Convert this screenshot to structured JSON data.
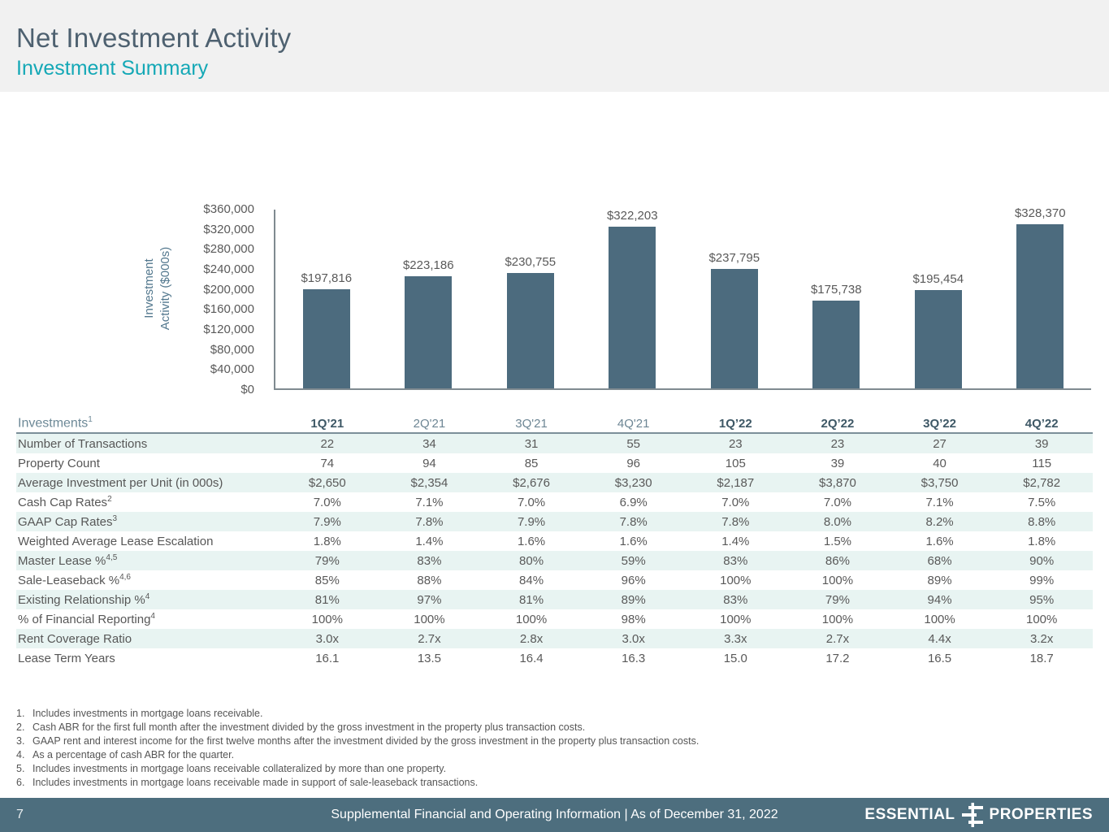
{
  "header": {
    "title": "Net Investment Activity",
    "subtitle": "Investment Summary"
  },
  "chart_data": {
    "type": "bar",
    "categories": [
      "1Q’21",
      "2Q'21",
      "3Q'21",
      "4Q'21",
      "1Q’22",
      "2Q’22",
      "3Q’22",
      "4Q’22"
    ],
    "values": [
      197816,
      223186,
      230755,
      322203,
      237795,
      175738,
      195454,
      328370
    ],
    "labels": [
      "$197,816",
      "$223,186",
      "$230,755",
      "$322,203",
      "$237,795",
      "$175,738",
      "$195,454",
      "$328,370"
    ],
    "title": "",
    "xlabel": "",
    "ylabel": "Investment\nActivity ($000s)",
    "ylim": [
      0,
      360000
    ],
    "ytick_step": 40000,
    "yticks": [
      "$360,000",
      "$320,000",
      "$280,000",
      "$240,000",
      "$200,000",
      "$160,000",
      "$120,000",
      "$80,000",
      "$40,000",
      "$0"
    ],
    "grid": false,
    "legend": null,
    "bar_color": "#4c6b7e"
  },
  "table": {
    "corner_label": "Investments",
    "corner_sup": "1",
    "columns": [
      {
        "label": "1Q’21",
        "bold": true
      },
      {
        "label": "2Q'21",
        "bold": false
      },
      {
        "label": "3Q'21",
        "bold": false
      },
      {
        "label": "4Q'21",
        "bold": false
      },
      {
        "label": "1Q’22",
        "bold": true
      },
      {
        "label": "2Q’22",
        "bold": true
      },
      {
        "label": "3Q’22",
        "bold": true
      },
      {
        "label": "4Q’22",
        "bold": true
      }
    ],
    "rows": [
      {
        "label": "Number of Transactions",
        "sup": "",
        "values": [
          "22",
          "34",
          "31",
          "55",
          "23",
          "23",
          "27",
          "39"
        ]
      },
      {
        "label": "Property Count",
        "sup": "",
        "values": [
          "74",
          "94",
          "85",
          "96",
          "105",
          "39",
          "40",
          "115"
        ]
      },
      {
        "label": "Average Investment per Unit (in 000s)",
        "sup": "",
        "values": [
          "$2,650",
          "$2,354",
          "$2,676",
          "$3,230",
          "$2,187",
          "$3,870",
          "$3,750",
          "$2,782"
        ]
      },
      {
        "label": "Cash Cap Rates",
        "sup": "2",
        "values": [
          "7.0%",
          "7.1%",
          "7.0%",
          "6.9%",
          "7.0%",
          "7.0%",
          "7.1%",
          "7.5%"
        ]
      },
      {
        "label": "GAAP Cap Rates",
        "sup": "3",
        "values": [
          "7.9%",
          "7.8%",
          "7.9%",
          "7.8%",
          "7.8%",
          "8.0%",
          "8.2%",
          "8.8%"
        ]
      },
      {
        "label": "Weighted Average Lease Escalation",
        "sup": "",
        "values": [
          "1.8%",
          "1.4%",
          "1.6%",
          "1.6%",
          "1.4%",
          "1.5%",
          "1.6%",
          "1.8%"
        ]
      },
      {
        "label": "Master Lease %",
        "sup": "4,5",
        "values": [
          "79%",
          "83%",
          "80%",
          "59%",
          "83%",
          "86%",
          "68%",
          "90%"
        ]
      },
      {
        "label": "Sale-Leaseback %",
        "sup": "4,6",
        "values": [
          "85%",
          "88%",
          "84%",
          "96%",
          "100%",
          "100%",
          "89%",
          "99%"
        ]
      },
      {
        "label": "Existing Relationship %",
        "sup": "4",
        "values": [
          "81%",
          "97%",
          "81%",
          "89%",
          "83%",
          "79%",
          "94%",
          "95%"
        ]
      },
      {
        "label": "% of Financial Reporting",
        "sup": "4",
        "values": [
          "100%",
          "100%",
          "100%",
          "98%",
          "100%",
          "100%",
          "100%",
          "100%"
        ]
      },
      {
        "label": "Rent Coverage Ratio",
        "sup": "",
        "values": [
          "3.0x",
          "2.7x",
          "2.8x",
          "3.0x",
          "3.3x",
          "2.7x",
          "4.4x",
          "3.2x"
        ]
      },
      {
        "label": "Lease Term Years",
        "sup": "",
        "values": [
          "16.1",
          "13.5",
          "16.4",
          "16.3",
          "15.0",
          "17.2",
          "16.5",
          "18.7"
        ]
      }
    ]
  },
  "footnotes": [
    {
      "num": "1.",
      "text": "Includes investments in mortgage loans receivable."
    },
    {
      "num": "2.",
      "text": "Cash ABR for the first full month after the investment divided by the gross investment in the property plus transaction costs."
    },
    {
      "num": "3.",
      "text": "GAAP rent and interest income for the first twelve months after the investment divided by the gross investment in the property plus transaction costs."
    },
    {
      "num": "4.",
      "text": "As a percentage of cash ABR for the quarter."
    },
    {
      "num": "5.",
      "text": "Includes investments in mortgage loans receivable collateralized by more than one property."
    },
    {
      "num": "6.",
      "text": "Includes investments in mortgage loans receivable made in support of sale-leaseback transactions."
    }
  ],
  "footer": {
    "page": "7",
    "center": "Supplemental Financial and Operating Information |  As of December 31, 2022",
    "brand_left": "ESSENTIAL",
    "brand_right": "PROPERTIES"
  }
}
